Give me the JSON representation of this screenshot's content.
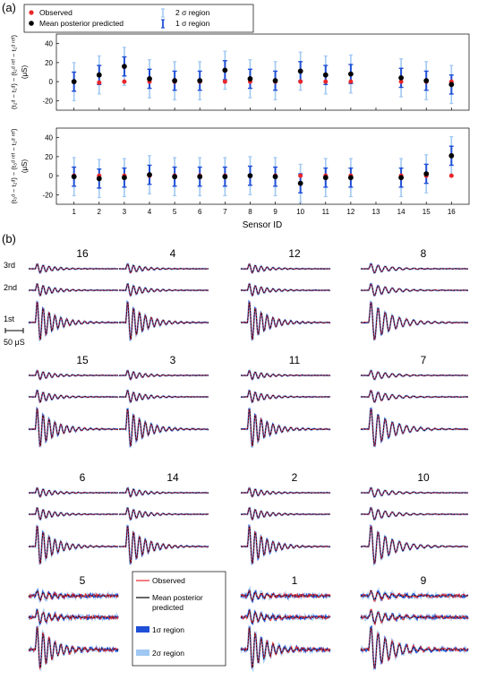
{
  "panel_a": {
    "label": "(a)",
    "legend": {
      "observed": "Observed",
      "mean": "Mean posterior predicted",
      "two_sigma": "2 σ region",
      "one_sigma": "1 σ region"
    },
    "top_ylabel_line1": "(t₂ᵈ − t₁ᵈ) − (t₂ᵈ ʳᵉᶠ − t₁ᵈ ʳᵉᶠ)",
    "top_ylabel_line2": "(μS)",
    "bottom_ylabel_line1": "(t₃ᵈ − t₂ᵈ) − (t₃ᵈ ʳᵉᶠ − t₂ᵈ ʳᵉᶠ)",
    "bottom_ylabel_line2": "(μS)",
    "xlabel": "Sensor ID",
    "colors": {
      "observed": "#e8262a",
      "mean": "#000000",
      "one_sigma": "#1f4fd6",
      "two_sigma": "#9fc8f2"
    }
  },
  "chart_data": [
    {
      "type": "scatter",
      "title": "",
      "xlabel": "",
      "ylabel": "(t₂ᵈ − t₁ᵈ) − (t₂ᵈ ʳᵉᶠ − t₁ᵈ ʳᵉᶠ) (μS)",
      "xlim": [
        0.3,
        16.7
      ],
      "ylim": [
        -30,
        50
      ],
      "yticks": [
        -20,
        0,
        20,
        40
      ],
      "xticks": [
        1,
        2,
        3,
        4,
        5,
        6,
        7,
        8,
        9,
        10,
        11,
        12,
        13,
        14,
        15,
        16
      ],
      "sensors": [
        1,
        2,
        3,
        4,
        5,
        6,
        7,
        8,
        9,
        10,
        11,
        12,
        14,
        15,
        16
      ],
      "observed": [
        0,
        -1,
        0,
        0,
        0,
        0,
        0,
        0,
        0,
        0,
        0,
        0,
        0,
        0,
        0
      ],
      "mean": [
        0,
        7,
        16,
        3,
        1,
        1,
        12,
        3,
        1,
        11,
        7,
        8,
        4,
        1,
        -3
      ],
      "one_sigma": [
        10,
        10,
        10,
        10,
        10,
        10,
        10,
        10,
        10,
        10,
        10,
        10,
        10,
        10,
        10
      ],
      "two_sigma": [
        20,
        20,
        20,
        20,
        20,
        20,
        20,
        20,
        20,
        20,
        20,
        20,
        20,
        20,
        20
      ]
    },
    {
      "type": "scatter",
      "title": "",
      "xlabel": "Sensor ID",
      "ylabel": "(t₃ᵈ − t₂ᵈ) − (t₃ᵈ ʳᵉᶠ − t₂ᵈ ʳᵉᶠ) (μS)",
      "xlim": [
        0.3,
        16.7
      ],
      "ylim": [
        -30,
        50
      ],
      "yticks": [
        -20,
        0,
        20,
        40
      ],
      "xticks": [
        1,
        2,
        3,
        4,
        5,
        6,
        7,
        8,
        9,
        10,
        11,
        12,
        13,
        14,
        15,
        16
      ],
      "sensors": [
        1,
        2,
        3,
        4,
        5,
        6,
        7,
        8,
        9,
        10,
        11,
        12,
        14,
        15,
        16
      ],
      "observed": [
        0,
        0,
        0,
        0,
        0,
        0,
        0,
        0,
        0,
        0,
        0,
        0,
        0,
        0,
        0
      ],
      "mean": [
        -1,
        -3,
        -2,
        1,
        -1,
        -1,
        -1,
        0,
        -1,
        -8,
        -2,
        -2,
        -2,
        2,
        21
      ],
      "one_sigma": [
        10,
        10,
        10,
        10,
        10,
        10,
        10,
        10,
        10,
        10,
        10,
        10,
        10,
        10,
        10
      ],
      "two_sigma": [
        20,
        20,
        20,
        20,
        20,
        20,
        20,
        20,
        20,
        20,
        20,
        20,
        20,
        20,
        20
      ]
    }
  ],
  "panel_b": {
    "label": "(b)",
    "trace_labels": [
      "3rd",
      "2nd",
      "1st"
    ],
    "scale_label": "50 μS",
    "tiles": [
      [
        "16",
        "4",
        "12",
        "8"
      ],
      [
        "15",
        "3",
        "11",
        "7"
      ],
      [
        "6",
        "14",
        "2",
        "10"
      ],
      [
        "5",
        "13",
        "1",
        "9"
      ]
    ],
    "legend": {
      "observed": "Observed",
      "mean_line1": "Mean posterior",
      "mean_line2": "predicted",
      "one_sigma": "1σ region",
      "two_sigma": "2σ region"
    }
  }
}
